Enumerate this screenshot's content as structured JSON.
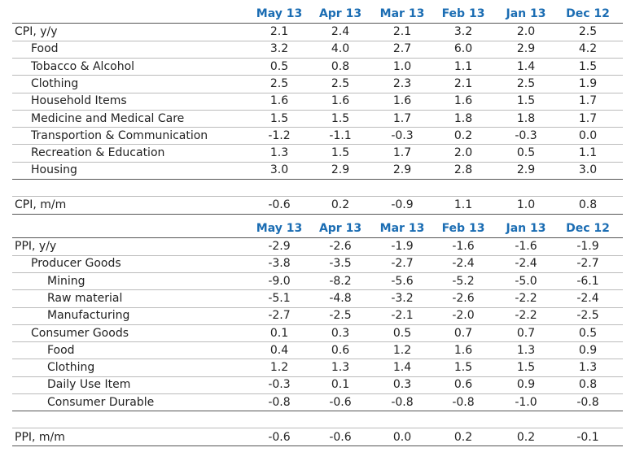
{
  "sections": [
    {
      "columns": [
        "May 13",
        "Apr 13",
        "Mar 13",
        "Feb 13",
        "Jan 13",
        "Dec 12"
      ],
      "rows": [
        {
          "label": "CPI, y/y",
          "values": [
            "2.1",
            "2.4",
            "2.1",
            "3.2",
            "2.0",
            "2.5"
          ],
          "children": [
            {
              "label": "Food",
              "values": [
                "3.2",
                "4.0",
                "2.7",
                "6.0",
                "2.9",
                "4.2"
              ]
            },
            {
              "label": "Tobacco & Alcohol",
              "values": [
                "0.5",
                "0.8",
                "1.0",
                "1.1",
                "1.4",
                "1.5"
              ]
            },
            {
              "label": "Clothing",
              "values": [
                "2.5",
                "2.5",
                "2.3",
                "2.1",
                "2.5",
                "1.9"
              ]
            },
            {
              "label": "Household Items",
              "values": [
                "1.6",
                "1.6",
                "1.6",
                "1.6",
                "1.5",
                "1.7"
              ]
            },
            {
              "label": "Medicine and Medical Care",
              "values": [
                "1.5",
                "1.5",
                "1.7",
                "1.8",
                "1.8",
                "1.7"
              ]
            },
            {
              "label": "Transportion & Communication",
              "values": [
                "-1.2",
                "-1.1",
                "-0.3",
                "0.2",
                "-0.3",
                "0.0"
              ]
            },
            {
              "label": "Recreation & Education",
              "values": [
                "1.3",
                "1.5",
                "1.7",
                "2.0",
                "0.5",
                "1.1"
              ]
            },
            {
              "label": "Housing",
              "values": [
                "3.0",
                "2.9",
                "2.9",
                "2.8",
                "2.9",
                "3.0"
              ]
            }
          ]
        }
      ],
      "summary": {
        "label": "CPI, m/m",
        "values": [
          "-0.6",
          "0.2",
          "-0.9",
          "1.1",
          "1.0",
          "0.8"
        ]
      }
    },
    {
      "columns": [
        "May 13",
        "Apr 13",
        "Mar 13",
        "Feb 13",
        "Jan 13",
        "Dec 12"
      ],
      "rows": [
        {
          "label": "PPI, y/y",
          "values": [
            "-2.9",
            "-2.6",
            "-1.9",
            "-1.6",
            "-1.6",
            "-1.9"
          ],
          "children": [
            {
              "label": "Producer Goods",
              "values": [
                "-3.8",
                "-3.5",
                "-2.7",
                "-2.4",
                "-2.4",
                "-2.7"
              ],
              "children": [
                {
                  "label": "Mining",
                  "values": [
                    "-9.0",
                    "-8.2",
                    "-5.6",
                    "-5.2",
                    "-5.0",
                    "-6.1"
                  ]
                },
                {
                  "label": "Raw material",
                  "values": [
                    "-5.1",
                    "-4.8",
                    "-3.2",
                    "-2.6",
                    "-2.2",
                    "-2.4"
                  ]
                },
                {
                  "label": "Manufacturing",
                  "values": [
                    "-2.7",
                    "-2.5",
                    "-2.1",
                    "-2.0",
                    "-2.2",
                    "-2.5"
                  ]
                }
              ]
            },
            {
              "label": "Consumer Goods",
              "values": [
                "0.1",
                "0.3",
                "0.5",
                "0.7",
                "0.7",
                "0.5"
              ],
              "children": [
                {
                  "label": "Food",
                  "values": [
                    "0.4",
                    "0.6",
                    "1.2",
                    "1.6",
                    "1.3",
                    "0.9"
                  ]
                },
                {
                  "label": "Clothing",
                  "values": [
                    "1.2",
                    "1.3",
                    "1.4",
                    "1.5",
                    "1.5",
                    "1.3"
                  ]
                },
                {
                  "label": "Daily Use Item",
                  "values": [
                    "-0.3",
                    "0.1",
                    "0.3",
                    "0.6",
                    "0.9",
                    "0.8"
                  ]
                },
                {
                  "label": "Consumer Durable",
                  "values": [
                    "-0.8",
                    "-0.6",
                    "-0.8",
                    "-0.8",
                    "-1.0",
                    "-0.8"
                  ]
                }
              ]
            }
          ]
        }
      ],
      "summary": {
        "label": "PPI, m/m",
        "values": [
          "-0.6",
          "-0.6",
          "0.0",
          "0.2",
          "0.2",
          "-0.1"
        ]
      }
    }
  ]
}
